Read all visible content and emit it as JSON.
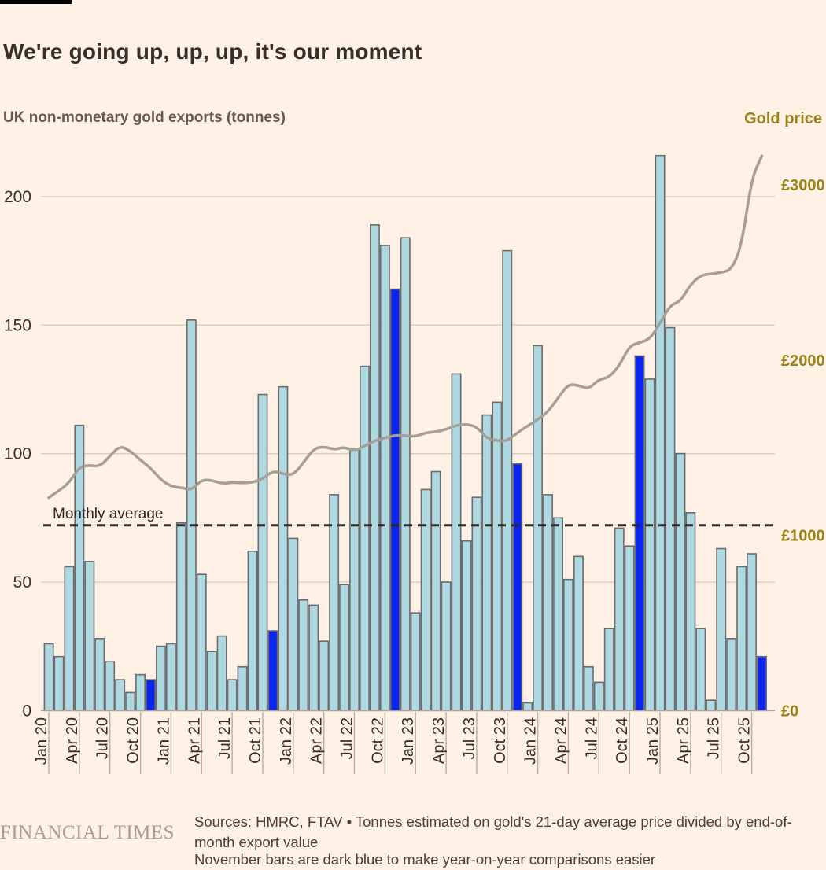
{
  "header": {
    "title": "We're going up, up, up, it's our moment",
    "subtitle": "UK non-monetary gold exports (tonnes)",
    "right_label": "Gold price"
  },
  "chart_data": {
    "type": "bar",
    "title": "We're going up, up, up, it's our moment",
    "subtitle": "UK non-monetary gold exports (tonnes)",
    "grid": true,
    "legend": "none",
    "x_months": [
      "Jan 20",
      "Feb 20",
      "Mar 20",
      "Apr 20",
      "May 20",
      "Jun 20",
      "Jul 20",
      "Aug 20",
      "Sep 20",
      "Oct 20",
      "Nov 20",
      "Dec 20",
      "Jan 21",
      "Feb 21",
      "Mar 21",
      "Apr 21",
      "May 21",
      "Jun 21",
      "Jul 21",
      "Aug 21",
      "Sep 21",
      "Oct 21",
      "Nov 21",
      "Dec 21",
      "Jan 22",
      "Feb 22",
      "Mar 22",
      "Apr 22",
      "May 22",
      "Jun 22",
      "Jul 22",
      "Aug 22",
      "Sep 22",
      "Oct 22",
      "Nov 22",
      "Dec 22",
      "Jan 23",
      "Feb 23",
      "Mar 23",
      "Apr 23",
      "May 23",
      "Jun 23",
      "Jul 23",
      "Aug 23",
      "Sep 23",
      "Oct 23",
      "Nov 23",
      "Dec 23",
      "Jan 24",
      "Feb 24",
      "Mar 24",
      "Apr 24",
      "May 24",
      "Jun 24",
      "Jul 24",
      "Aug 24",
      "Sep 24",
      "Oct 24",
      "Nov 24",
      "Dec 24",
      "Jan 25",
      "Feb 25",
      "Mar 25",
      "Apr 25",
      "May 25",
      "Jun 25",
      "Jul 25",
      "Aug 25",
      "Sep 25",
      "Oct 25",
      "Nov 25"
    ],
    "x_tick_labels": [
      "Jan 20",
      "Apr 20",
      "Jul 20",
      "Oct 20",
      "Jan 21",
      "Apr 21",
      "Jul 21",
      "Oct 21",
      "Jan 22",
      "Apr 22",
      "Jul 22",
      "Oct 22",
      "Jan 23",
      "Apr 23",
      "Jul 23",
      "Oct 23",
      "Jan 24",
      "Apr 24",
      "Jul 24",
      "Oct 24",
      "Jan 25",
      "Apr 25",
      "Jul 25",
      "Oct 25"
    ],
    "series": [
      {
        "name": "UK non-monetary gold exports",
        "type": "bar",
        "axis": "left",
        "unit": "tonnes",
        "values": [
          26,
          21,
          56,
          111,
          58,
          28,
          19,
          12,
          7,
          14,
          12,
          25,
          26,
          73,
          152,
          53,
          23,
          29,
          12,
          17,
          62,
          123,
          31,
          126,
          67,
          43,
          41,
          27,
          84,
          49,
          102,
          134,
          189,
          181,
          164,
          184,
          38,
          86,
          93,
          50,
          131,
          66,
          83,
          115,
          120,
          179,
          96,
          3,
          142,
          84,
          75,
          51,
          60,
          17,
          11,
          32,
          71,
          64,
          138,
          129,
          216,
          149,
          100,
          77,
          32,
          4,
          63,
          28,
          56,
          61,
          21
        ]
      },
      {
        "name": "Gold price",
        "type": "line",
        "axis": "right",
        "unit": "£",
        "values": [
          1215,
          1255,
          1300,
          1390,
          1400,
          1392,
          1452,
          1512,
          1482,
          1429,
          1384,
          1317,
          1280,
          1272,
          1257,
          1317,
          1314,
          1295,
          1302,
          1299,
          1302,
          1321,
          1369,
          1350,
          1344,
          1415,
          1494,
          1507,
          1489,
          1504,
          1482,
          1510,
          1541,
          1555,
          1572,
          1568,
          1564,
          1586,
          1590,
          1605,
          1628,
          1634,
          1620,
          1552,
          1540,
          1538,
          1586,
          1624,
          1660,
          1706,
          1785,
          1863,
          1856,
          1834,
          1890,
          1901,
          1968,
          2080,
          2100,
          2120,
          2210,
          2313,
          2335,
          2432,
          2484,
          2492,
          2500,
          2515,
          2650,
          3040,
          3165
        ]
      }
    ],
    "left_axis": {
      "ticks": [
        0,
        50,
        100,
        150,
        200
      ],
      "range": [
        0,
        220
      ]
    },
    "right_axis": {
      "ticks": [
        0,
        1000,
        2000,
        3000
      ],
      "tick_labels": [
        "£0",
        "£1000",
        "£2000",
        "£3000"
      ],
      "range": [
        0,
        3200
      ]
    },
    "average_line": {
      "label": "Monthly average",
      "value": 72.1,
      "style": "dashed"
    },
    "colors": {
      "background": "#fff1e5",
      "bar": "#aed8e2",
      "bar_november": "#0a25f1",
      "bar_border": "#6b6c6a",
      "line": "#a49f97",
      "grid": "#d9cfc3",
      "baseline": "#aba49a",
      "tick": "#b9b2a7",
      "dashed": "#2b2824",
      "axis_text": "#33302c",
      "gold_text": "#998417"
    }
  },
  "footer": {
    "brand": "FINANCIAL TIMES",
    "sources": "Sources: HMRC, FTAV • Tonnes estimated on gold's 21-day average price divided by end-of-month export value",
    "note": "November bars are dark blue to make year-on-year comparisons easier"
  }
}
